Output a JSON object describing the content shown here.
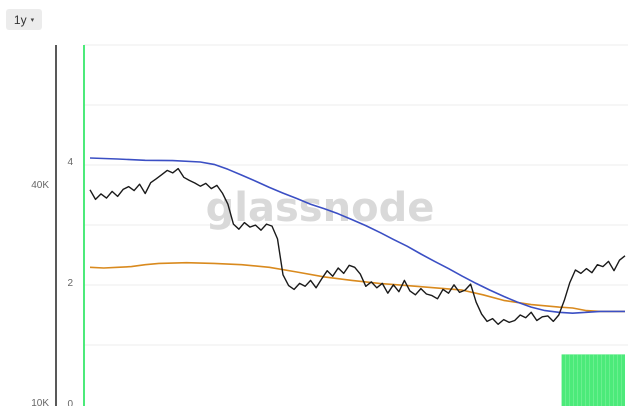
{
  "toolbar": {
    "range_label": "1y",
    "range_caret": "▾"
  },
  "watermark": "glassnode",
  "colors": {
    "price": "#1a1a1a",
    "blue_line": "#3b4fc4",
    "orange_line": "#d98a1e",
    "green": "#4cea7a",
    "grid": "#eeeeee",
    "axis": "#222222"
  },
  "chart_data": {
    "type": "line",
    "title": "",
    "left_axis": {
      "ticks": [
        {
          "value": 10000,
          "label": "10K"
        },
        {
          "value": 40000,
          "label": "40K"
        }
      ],
      "scale": "log"
    },
    "right_axis": {
      "ticks": [
        {
          "value": 0,
          "label": "0"
        },
        {
          "value": 2,
          "label": "2"
        },
        {
          "value": 4,
          "label": "4"
        }
      ],
      "ylim": [
        0,
        6
      ]
    },
    "grid": true,
    "series": [
      {
        "key": "price",
        "axis": "left",
        "points": [
          [
            0.0,
            38800
          ],
          [
            0.8,
            36500
          ],
          [
            1.6,
            37800
          ],
          [
            2.4,
            36800
          ],
          [
            3.2,
            38400
          ],
          [
            4.0,
            37200
          ],
          [
            4.8,
            38900
          ],
          [
            5.6,
            39600
          ],
          [
            6.4,
            38600
          ],
          [
            7.2,
            40200
          ],
          [
            8.0,
            37900
          ],
          [
            8.8,
            40600
          ],
          [
            9.6,
            41600
          ],
          [
            10.4,
            42700
          ],
          [
            11.2,
            43900
          ],
          [
            12.0,
            43200
          ],
          [
            12.8,
            44400
          ],
          [
            13.6,
            42000
          ],
          [
            14.4,
            41200
          ],
          [
            15.2,
            40500
          ],
          [
            16.0,
            39700
          ],
          [
            16.8,
            40400
          ],
          [
            17.6,
            39100
          ],
          [
            18.4,
            39900
          ],
          [
            19.2,
            38000
          ],
          [
            20.0,
            35400
          ],
          [
            20.8,
            31200
          ],
          [
            21.6,
            30200
          ],
          [
            22.4,
            31500
          ],
          [
            23.2,
            30600
          ],
          [
            24.0,
            31000
          ],
          [
            24.8,
            30000
          ],
          [
            25.6,
            31200
          ],
          [
            26.4,
            30800
          ],
          [
            27.2,
            28400
          ],
          [
            28.0,
            22600
          ],
          [
            28.8,
            21100
          ],
          [
            29.6,
            20600
          ],
          [
            30.4,
            21400
          ],
          [
            31.2,
            21000
          ],
          [
            32.0,
            21800
          ],
          [
            32.8,
            20800
          ],
          [
            33.6,
            22000
          ],
          [
            34.4,
            23200
          ],
          [
            35.2,
            22400
          ],
          [
            36.0,
            23600
          ],
          [
            36.8,
            22800
          ],
          [
            37.6,
            24000
          ],
          [
            38.4,
            23700
          ],
          [
            39.2,
            22700
          ],
          [
            40.0,
            21000
          ],
          [
            40.8,
            21600
          ],
          [
            41.6,
            20800
          ],
          [
            42.4,
            21400
          ],
          [
            43.2,
            20100
          ],
          [
            44.0,
            21200
          ],
          [
            44.8,
            20300
          ],
          [
            45.6,
            21800
          ],
          [
            46.4,
            20400
          ],
          [
            47.2,
            19900
          ],
          [
            48.0,
            20700
          ],
          [
            48.8,
            20000
          ],
          [
            49.6,
            19800
          ],
          [
            50.4,
            19400
          ],
          [
            51.2,
            20600
          ],
          [
            52.0,
            20100
          ],
          [
            52.8,
            21200
          ],
          [
            53.6,
            20200
          ],
          [
            54.4,
            20500
          ],
          [
            55.2,
            21300
          ],
          [
            56.0,
            19000
          ],
          [
            56.8,
            17600
          ],
          [
            57.6,
            16800
          ],
          [
            58.4,
            17100
          ],
          [
            59.2,
            16500
          ],
          [
            60.0,
            17000
          ],
          [
            60.8,
            16700
          ],
          [
            61.6,
            16900
          ],
          [
            62.4,
            17500
          ],
          [
            63.2,
            17200
          ],
          [
            64.0,
            17800
          ],
          [
            64.8,
            16900
          ],
          [
            65.6,
            17300
          ],
          [
            66.4,
            17400
          ],
          [
            67.2,
            16800
          ],
          [
            68.0,
            17500
          ],
          [
            68.8,
            19200
          ],
          [
            69.6,
            21500
          ],
          [
            70.4,
            23300
          ],
          [
            71.2,
            22800
          ],
          [
            72.0,
            23500
          ],
          [
            72.8,
            22900
          ],
          [
            73.6,
            24100
          ],
          [
            74.4,
            23800
          ],
          [
            75.2,
            24600
          ],
          [
            76.0,
            23200
          ],
          [
            76.8,
            24800
          ],
          [
            77.6,
            25500
          ]
        ]
      },
      {
        "key": "blue",
        "axis": "left",
        "points": [
          [
            0.0,
            47500
          ],
          [
            4.0,
            47200
          ],
          [
            8.0,
            46800
          ],
          [
            12.0,
            46700
          ],
          [
            16.0,
            46300
          ],
          [
            18.0,
            45600
          ],
          [
            20.0,
            44200
          ],
          [
            22.0,
            42600
          ],
          [
            24.0,
            41000
          ],
          [
            26.0,
            39400
          ],
          [
            28.0,
            38000
          ],
          [
            30.0,
            36700
          ],
          [
            32.0,
            35400
          ],
          [
            34.0,
            34400
          ],
          [
            36.0,
            33300
          ],
          [
            38.0,
            32100
          ],
          [
            40.0,
            30900
          ],
          [
            42.0,
            29600
          ],
          [
            44.0,
            28300
          ],
          [
            46.0,
            27100
          ],
          [
            48.0,
            25800
          ],
          [
            50.0,
            24600
          ],
          [
            52.0,
            23500
          ],
          [
            54.0,
            22400
          ],
          [
            56.0,
            21400
          ],
          [
            58.0,
            20500
          ],
          [
            60.0,
            19700
          ],
          [
            62.0,
            19000
          ],
          [
            64.0,
            18400
          ],
          [
            66.0,
            18000
          ],
          [
            68.0,
            17800
          ],
          [
            70.0,
            17700
          ],
          [
            72.0,
            17800
          ],
          [
            74.0,
            17900
          ],
          [
            77.6,
            17900
          ]
        ]
      },
      {
        "key": "orange",
        "axis": "left",
        "points": [
          [
            0.0,
            23700
          ],
          [
            2.0,
            23600
          ],
          [
            4.0,
            23700
          ],
          [
            6.0,
            23800
          ],
          [
            8.0,
            24100
          ],
          [
            10.0,
            24300
          ],
          [
            14.0,
            24400
          ],
          [
            18.0,
            24300
          ],
          [
            22.0,
            24100
          ],
          [
            26.0,
            23700
          ],
          [
            30.0,
            23000
          ],
          [
            34.0,
            22300
          ],
          [
            38.0,
            21800
          ],
          [
            42.0,
            21400
          ],
          [
            46.0,
            21100
          ],
          [
            50.0,
            20800
          ],
          [
            54.0,
            20500
          ],
          [
            57.0,
            19900
          ],
          [
            60.0,
            19200
          ],
          [
            64.0,
            18700
          ],
          [
            68.0,
            18400
          ],
          [
            70.0,
            18300
          ],
          [
            72.0,
            18000
          ],
          [
            74.0,
            17900
          ],
          [
            77.6,
            17900
          ]
        ]
      },
      {
        "key": "green_bars",
        "axis": "right",
        "points": [
          [
            68.4,
            0.82
          ],
          [
            77.6,
            0.82
          ]
        ]
      }
    ],
    "x_range": [
      0,
      77.6
    ]
  }
}
